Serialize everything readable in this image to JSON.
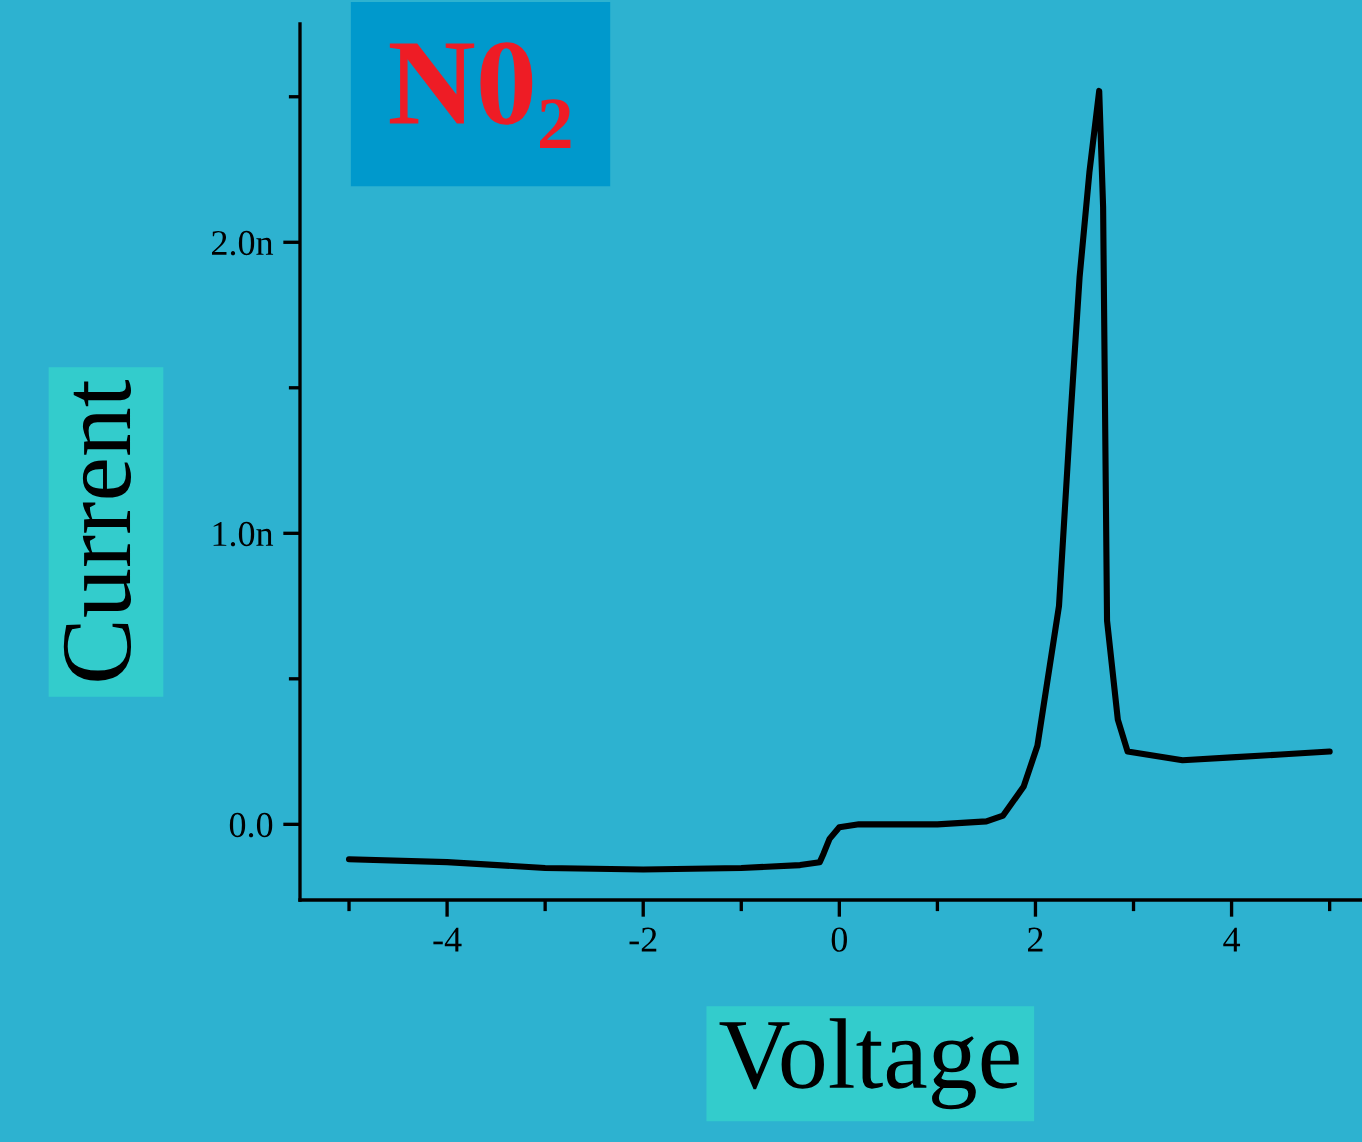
{
  "chart_data": {
    "type": "line",
    "title": "N0₂",
    "xlabel": "Voltage",
    "ylabel": "Current",
    "x": [
      -5,
      -4,
      -3,
      -2,
      -1,
      -0.4,
      -0.2,
      -0.16,
      -0.1,
      0,
      0.2,
      1.0,
      1.5,
      1.67,
      1.88,
      2.02,
      2.24,
      2.35,
      2.45,
      2.55,
      2.65,
      2.69,
      2.73,
      2.84,
      2.94,
      3.5,
      4,
      4.5,
      5
    ],
    "series": [
      {
        "color": "#000000",
        "values": [
          -0.12,
          -0.13,
          -0.15,
          -0.155,
          -0.15,
          -0.14,
          -0.13,
          -0.1,
          -0.05,
          -0.01,
          0.0,
          0.0,
          0.01,
          0.03,
          0.13,
          0.27,
          0.75,
          1.36,
          1.88,
          2.24,
          2.52,
          2.12,
          0.7,
          0.36,
          0.25,
          0.22,
          0.23,
          0.24,
          0.25
        ]
      }
    ],
    "xlim": [
      -5.5,
      5.33
    ],
    "ylim": [
      -0.26,
      2.75
    ],
    "xticks": [
      {
        "value": -5,
        "label": null
      },
      -4,
      {
        "value": -3,
        "label": null
      },
      -2,
      {
        "value": -1,
        "label": null
      },
      0,
      {
        "value": 1,
        "label": null
      },
      2,
      {
        "value": 3,
        "label": null
      },
      4,
      {
        "value": 5,
        "label": null
      }
    ],
    "yticks": [
      {
        "value": 0,
        "label": "0.0"
      },
      {
        "value": 0.5,
        "label": null
      },
      {
        "value": 1,
        "label": "1.0n"
      },
      {
        "value": 1.5,
        "label": null
      },
      {
        "value": 2,
        "label": "2.0n"
      },
      {
        "value": 2.5,
        "label": null
      }
    ],
    "grid": false,
    "legend": false,
    "marker": "none",
    "line_style": "solid"
  }
}
